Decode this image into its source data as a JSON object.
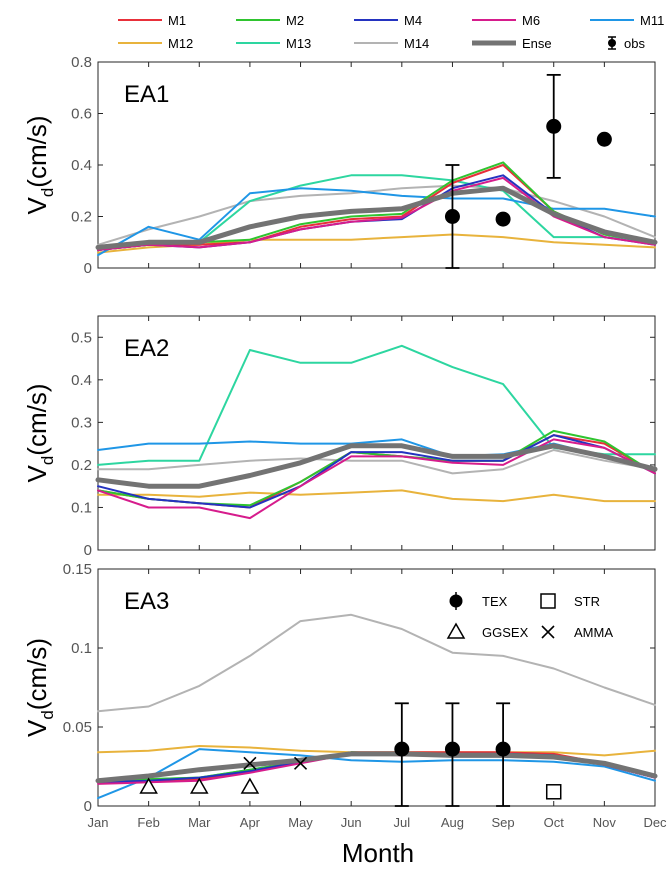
{
  "chart_data": {
    "type": "line",
    "xlabel": "Month",
    "ylabel_main": "V",
    "ylabel_sub": "d",
    "ylabel_unit": "(cm/s)",
    "months": [
      "Jan",
      "Feb",
      "Mar",
      "Apr",
      "May",
      "Jun",
      "Jul",
      "Aug",
      "Sep",
      "Oct",
      "Nov",
      "Dec"
    ],
    "legend": {
      "models": [
        {
          "name": "M1",
          "color": "#e8303a"
        },
        {
          "name": "M2",
          "color": "#2fc42f"
        },
        {
          "name": "M4",
          "color": "#2433c0"
        },
        {
          "name": "M6",
          "color": "#d61c8c"
        },
        {
          "name": "M11",
          "color": "#1f96e6"
        },
        {
          "name": "M12",
          "color": "#e8b33c"
        },
        {
          "name": "M13",
          "color": "#2dd6a0"
        },
        {
          "name": "M14",
          "color": "#b3b3b3"
        },
        {
          "name": "Ense",
          "color": "#737373"
        }
      ],
      "obs_label": "obs"
    },
    "panels": [
      {
        "region": "EA1",
        "ylim": [
          0,
          0.8
        ],
        "yticks": [
          "0",
          "0.2",
          "0.4",
          "0.6",
          "0.8"
        ],
        "series": [
          {
            "name": "M1",
            "values": [
              0.07,
              0.09,
              0.09,
              0.1,
              0.16,
              0.19,
              0.2,
              0.33,
              0.4,
              0.22,
              0.13,
              0.1
            ]
          },
          {
            "name": "M2",
            "values": [
              0.07,
              0.09,
              0.1,
              0.11,
              0.17,
              0.2,
              0.21,
              0.34,
              0.41,
              0.22,
              0.13,
              0.1
            ]
          },
          {
            "name": "M4",
            "values": [
              0.07,
              0.09,
              0.08,
              0.1,
              0.15,
              0.18,
              0.19,
              0.31,
              0.36,
              0.21,
              0.12,
              0.09
            ]
          },
          {
            "name": "M6",
            "values": [
              0.07,
              0.09,
              0.08,
              0.1,
              0.15,
              0.18,
              0.195,
              0.3,
              0.35,
              0.2,
              0.12,
              0.09
            ]
          },
          {
            "name": "M11",
            "values": [
              0.05,
              0.16,
              0.11,
              0.29,
              0.31,
              0.3,
              0.28,
              0.27,
              0.27,
              0.23,
              0.23,
              0.2
            ]
          },
          {
            "name": "M12",
            "values": [
              0.06,
              0.08,
              0.09,
              0.11,
              0.11,
              0.11,
              0.12,
              0.13,
              0.12,
              0.1,
              0.09,
              0.08
            ]
          },
          {
            "name": "M13",
            "values": [
              0.08,
              0.1,
              0.1,
              0.26,
              0.32,
              0.36,
              0.36,
              0.34,
              0.3,
              0.12,
              0.12,
              0.1
            ]
          },
          {
            "name": "M14",
            "values": [
              0.09,
              0.15,
              0.2,
              0.26,
              0.28,
              0.29,
              0.31,
              0.32,
              0.31,
              0.26,
              0.2,
              0.12
            ]
          },
          {
            "name": "Ense",
            "values": [
              0.08,
              0.1,
              0.1,
              0.16,
              0.2,
              0.22,
              0.23,
              0.29,
              0.31,
              0.21,
              0.14,
              0.1
            ]
          }
        ],
        "obs": [
          {
            "month": 8,
            "value": 0.2,
            "lo": 0.0,
            "hi": 0.4
          },
          {
            "month": 9,
            "value": 0.19
          },
          {
            "month": 10,
            "value": 0.55,
            "lo": 0.35,
            "hi": 0.75
          },
          {
            "month": 11,
            "value": 0.5
          }
        ]
      },
      {
        "region": "EA2",
        "ylim": [
          0,
          0.55
        ],
        "yticks": [
          "0",
          "0.1",
          "0.2",
          "0.3",
          "0.4",
          "0.5"
        ],
        "series": [
          {
            "name": "M1",
            "values": [
              0.14,
              0.12,
              0.11,
              0.1,
              0.16,
              0.23,
              0.22,
              0.21,
              0.21,
              0.27,
              0.25,
              0.18
            ]
          },
          {
            "name": "M2",
            "values": [
              0.14,
              0.12,
              0.11,
              0.105,
              0.16,
              0.23,
              0.22,
              0.21,
              0.21,
              0.28,
              0.255,
              0.18
            ]
          },
          {
            "name": "M4",
            "values": [
              0.15,
              0.12,
              0.11,
              0.1,
              0.15,
              0.23,
              0.23,
              0.21,
              0.21,
              0.27,
              0.24,
              0.18
            ]
          },
          {
            "name": "M6",
            "values": [
              0.14,
              0.1,
              0.1,
              0.075,
              0.15,
              0.22,
              0.22,
              0.205,
              0.2,
              0.26,
              0.24,
              0.18
            ]
          },
          {
            "name": "M11",
            "values": [
              0.235,
              0.25,
              0.25,
              0.255,
              0.25,
              0.25,
              0.26,
              0.22,
              0.225,
              0.25,
              0.22,
              0.19
            ]
          },
          {
            "name": "M12",
            "values": [
              0.13,
              0.13,
              0.125,
              0.135,
              0.13,
              0.135,
              0.14,
              0.12,
              0.115,
              0.13,
              0.115,
              0.115
            ]
          },
          {
            "name": "M13",
            "values": [
              0.2,
              0.21,
              0.21,
              0.47,
              0.44,
              0.44,
              0.48,
              0.43,
              0.39,
              0.24,
              0.225,
              0.225
            ]
          },
          {
            "name": "M14",
            "values": [
              0.19,
              0.19,
              0.2,
              0.21,
              0.215,
              0.21,
              0.21,
              0.18,
              0.19,
              0.235,
              0.21,
              0.19
            ]
          },
          {
            "name": "Ense",
            "values": [
              0.165,
              0.15,
              0.15,
              0.175,
              0.205,
              0.245,
              0.245,
              0.22,
              0.22,
              0.245,
              0.22,
              0.19
            ]
          }
        ],
        "obs": []
      },
      {
        "region": "EA3",
        "ylim": [
          0,
          0.15
        ],
        "yticks": [
          "0",
          "0.05",
          "0.1",
          "0.15"
        ],
        "series": [
          {
            "name": "M1",
            "values": [
              0.015,
              0.016,
              0.017,
              0.022,
              0.028,
              0.034,
              0.034,
              0.034,
              0.034,
              0.033,
              0.027,
              0.019
            ]
          },
          {
            "name": "M2",
            "values": [
              0.016,
              0.017,
              0.018,
              0.023,
              0.028,
              0.034,
              0.033,
              0.033,
              0.033,
              0.032,
              0.026,
              0.019
            ]
          },
          {
            "name": "M4",
            "values": [
              0.015,
              0.016,
              0.018,
              0.022,
              0.028,
              0.033,
              0.033,
              0.033,
              0.033,
              0.032,
              0.026,
              0.018
            ]
          },
          {
            "name": "M6",
            "values": [
              0.014,
              0.015,
              0.016,
              0.021,
              0.027,
              0.033,
              0.032,
              0.032,
              0.032,
              0.031,
              0.026,
              0.018
            ]
          },
          {
            "name": "M11",
            "values": [
              0.005,
              0.018,
              0.036,
              0.034,
              0.032,
              0.029,
              0.028,
              0.029,
              0.029,
              0.028,
              0.025,
              0.016
            ]
          },
          {
            "name": "M12",
            "values": [
              0.034,
              0.035,
              0.038,
              0.037,
              0.035,
              0.034,
              0.034,
              0.034,
              0.034,
              0.034,
              0.032,
              0.035
            ]
          },
          {
            "name": "M13",
            "values": [
              0.015,
              0.017,
              0.018,
              0.023,
              0.028,
              0.034,
              0.033,
              0.033,
              0.033,
              0.032,
              0.026,
              0.019
            ]
          },
          {
            "name": "M14",
            "values": [
              0.06,
              0.063,
              0.076,
              0.095,
              0.117,
              0.121,
              0.112,
              0.097,
              0.095,
              0.087,
              0.075,
              0.064
            ]
          },
          {
            "name": "Ense",
            "values": [
              0.016,
              0.019,
              0.023,
              0.026,
              0.029,
              0.033,
              0.033,
              0.032,
              0.032,
              0.031,
              0.027,
              0.019
            ]
          }
        ],
        "obs_sets": [
          {
            "name": "TEX",
            "marker": "circle",
            "points": [
              {
                "month": 7,
                "value": 0.036,
                "lo": 0.0,
                "hi": 0.065
              },
              {
                "month": 8,
                "value": 0.036,
                "lo": 0.0,
                "hi": 0.065
              },
              {
                "month": 9,
                "value": 0.036,
                "lo": 0.0,
                "hi": 0.065
              }
            ]
          },
          {
            "name": "STR",
            "marker": "square",
            "points": [
              {
                "month": 10,
                "value": 0.009
              }
            ]
          },
          {
            "name": "GGSEX",
            "marker": "triangle",
            "points": [
              {
                "month": 2,
                "value": 0.012
              },
              {
                "month": 3,
                "value": 0.012
              },
              {
                "month": 4,
                "value": 0.012
              }
            ]
          },
          {
            "name": "AMMA",
            "marker": "cross",
            "points": [
              {
                "month": 4,
                "value": 0.027
              },
              {
                "month": 5,
                "value": 0.027
              }
            ]
          }
        ]
      }
    ]
  }
}
